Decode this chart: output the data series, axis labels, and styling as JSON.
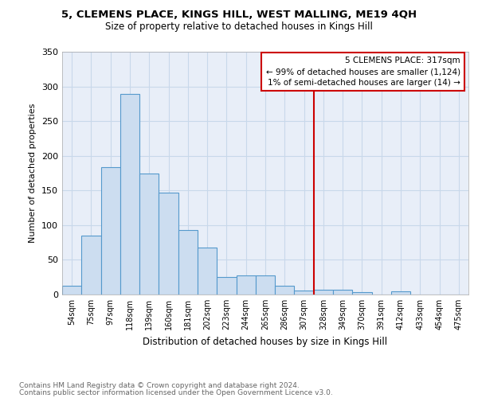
{
  "title": "5, CLEMENS PLACE, KINGS HILL, WEST MALLING, ME19 4QH",
  "subtitle": "Size of property relative to detached houses in Kings Hill",
  "xlabel": "Distribution of detached houses by size in Kings Hill",
  "ylabel": "Number of detached properties",
  "footer1": "Contains HM Land Registry data © Crown copyright and database right 2024.",
  "footer2": "Contains public sector information licensed under the Open Government Licence v3.0.",
  "bin_labels": [
    "54sqm",
    "75sqm",
    "97sqm",
    "118sqm",
    "139sqm",
    "160sqm",
    "181sqm",
    "202sqm",
    "223sqm",
    "244sqm",
    "265sqm",
    "286sqm",
    "307sqm",
    "328sqm",
    "349sqm",
    "370sqm",
    "391sqm",
    "412sqm",
    "433sqm",
    "454sqm",
    "475sqm"
  ],
  "bar_heights": [
    13,
    85,
    184,
    289,
    174,
    147,
    93,
    68,
    25,
    28,
    28,
    13,
    6,
    7,
    7,
    3,
    0,
    5,
    0,
    0,
    0
  ],
  "bar_color": "#ccddf0",
  "bar_edge_color": "#5599cc",
  "vline_x_idx": 12.5,
  "vline_color": "#cc0000",
  "annotation_title": "5 CLEMENS PLACE: 317sqm",
  "annotation_line1": "← 99% of detached houses are smaller (1,124)",
  "annotation_line2": "1% of semi-detached houses are larger (14) →",
  "annotation_box_color": "#cc0000",
  "ylim": [
    0,
    350
  ],
  "yticks": [
    0,
    50,
    100,
    150,
    200,
    250,
    300,
    350
  ],
  "grid_color": "#c8d8ea",
  "bg_color": "#e8eef8",
  "title_fontsize": 9.5,
  "subtitle_fontsize": 8.5
}
